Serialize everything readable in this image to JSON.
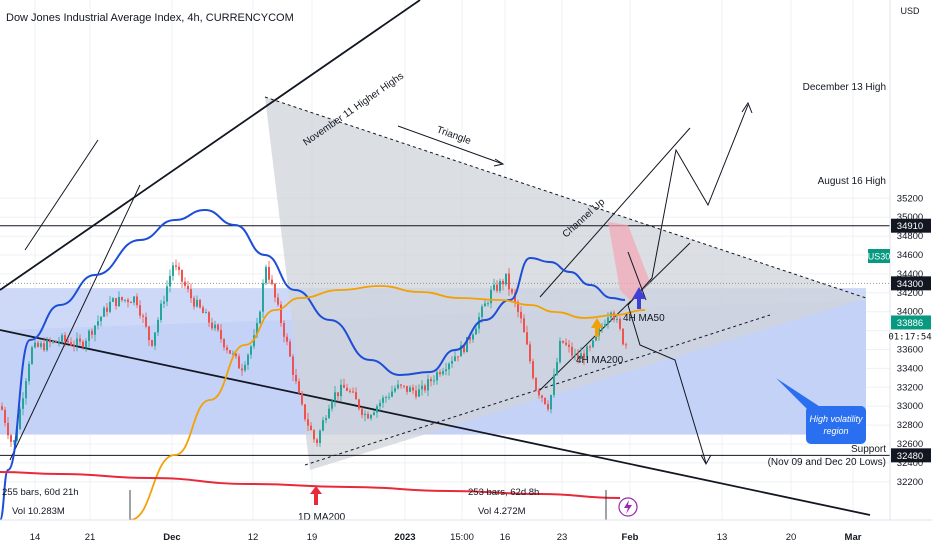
{
  "header": {
    "title": "Dow Jones Industrial Average Index, 4h, CURRENCYCOM"
  },
  "chart_data": {
    "type": "candlestick",
    "currency_label": "USD",
    "ylim": [
      32100,
      35600
    ],
    "price_ticks": [
      35200,
      35000,
      34800,
      34600,
      34400,
      34200,
      34000,
      33800,
      33600,
      33400,
      33200,
      33000,
      32800,
      32600,
      32400,
      32200
    ],
    "x_ticks": [
      "14",
      "21",
      "Dec",
      "12",
      "19",
      "2023",
      "15:00",
      "16",
      "23",
      "Feb",
      "13",
      "20",
      "Mar"
    ],
    "price_badges": [
      {
        "price": 34910,
        "label": "34910",
        "style": "dark"
      },
      {
        "price": 34300,
        "label": "34300",
        "style": "dark"
      },
      {
        "price": 32480,
        "label": "32480",
        "style": "dark"
      },
      {
        "price": 33886,
        "label": "33886",
        "style": "green"
      }
    ],
    "symbol_badge": {
      "label": "US30",
      "countdown": "01:17:54",
      "color": "#089981"
    },
    "series": [
      {
        "name": "4H MA50",
        "color": "#1e4ed8"
      },
      {
        "name": "4H MA200",
        "color": "#f2a104"
      },
      {
        "name": "1D MA200",
        "color": "#e8293a"
      }
    ],
    "candle_colors": {
      "up": "#26a69a",
      "down": "#ef5350"
    },
    "annotations": [
      {
        "text": "November 11 Higher Highs",
        "kind": "rotated"
      },
      {
        "text": "Triangle",
        "kind": "rotated"
      },
      {
        "text": "Channel Up",
        "kind": "rotated"
      },
      {
        "text": "December 13 High",
        "kind": "level"
      },
      {
        "text": "August 16 High",
        "kind": "level"
      },
      {
        "text": "Support",
        "kind": "level"
      },
      {
        "text": "(Nov 09 and Dec 20 Lows)",
        "kind": "level"
      },
      {
        "text": "4H MA50",
        "kind": "label"
      },
      {
        "text": "4H MA200",
        "kind": "label"
      },
      {
        "text": "1D MA200",
        "kind": "label"
      },
      {
        "text": "High volatility region",
        "kind": "callout"
      }
    ],
    "volume_labels": [
      {
        "bars": "255 bars, 60d 21h",
        "vol": "Vol 10.283M"
      },
      {
        "bars": "253 bars, 62d 8h",
        "vol": "Vol 4.272M"
      }
    ],
    "colors": {
      "volatility_band": "#c9d5f7",
      "triangle_fill": "#cfd3d9",
      "highlight": "#f4a6b3",
      "accent_purple": "#9c27b0"
    }
  }
}
